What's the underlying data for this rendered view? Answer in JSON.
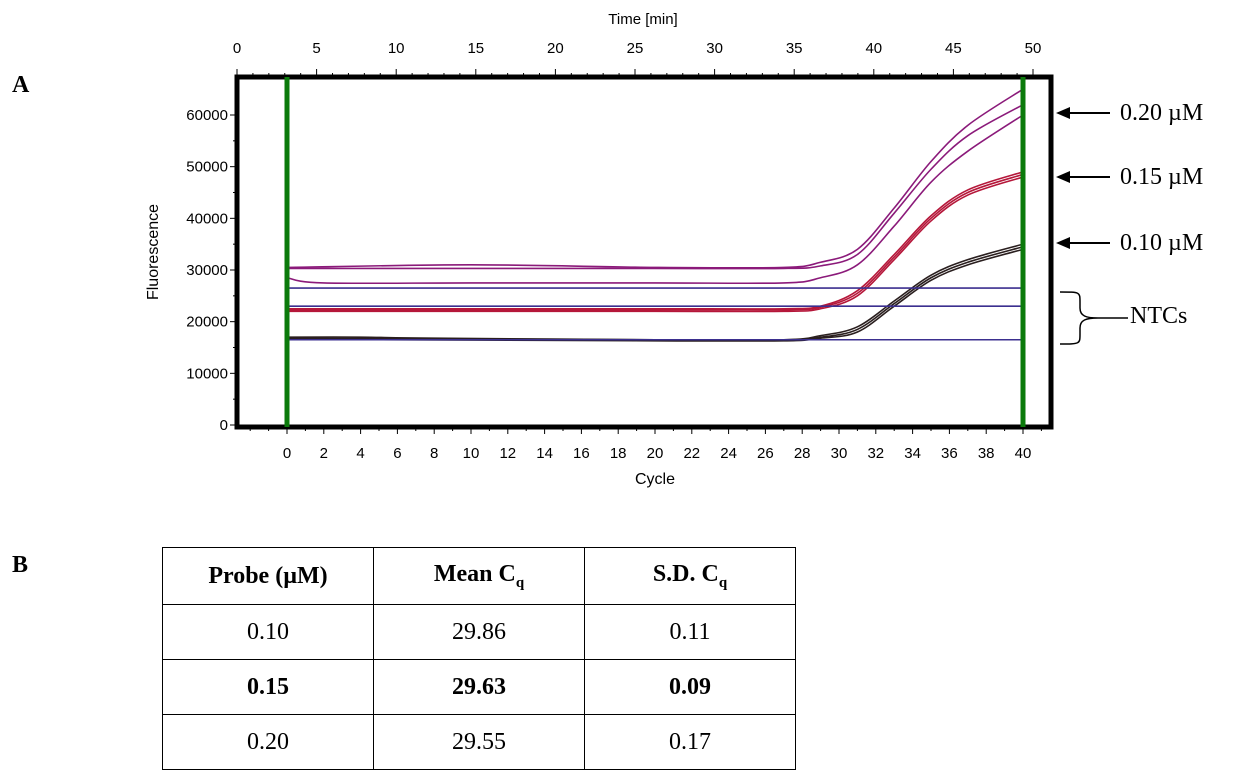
{
  "panel_labels": {
    "a": "A",
    "b": "B"
  },
  "annotations": {
    "c020": "0.20 µM",
    "c015": "0.15 µM",
    "c010": "0.10 µM",
    "ntc": "NTCs"
  },
  "colors": {
    "marker": "#0b7a0b",
    "high": "#8b1a7a",
    "mid": "#b5173a",
    "low": "#2a1f1f",
    "ntc": "#3b2f8f"
  },
  "chart_data": {
    "type": "line",
    "xlabel": "Cycle",
    "ylabel": "Fluorescence",
    "top_axis_label": "Time [min]",
    "xlim": [
      0,
      40
    ],
    "ylim": [
      0,
      65000
    ],
    "x_ticks": [
      "0",
      "2",
      "4",
      "6",
      "8",
      "10",
      "12",
      "14",
      "16",
      "18",
      "20",
      "22",
      "24",
      "26",
      "28",
      "30",
      "32",
      "34",
      "36",
      "38",
      "40"
    ],
    "y_ticks": [
      "0",
      "10000",
      "20000",
      "30000",
      "40000",
      "50000",
      "60000"
    ],
    "top_ticks": [
      "0",
      "5",
      "10",
      "15",
      "20",
      "25",
      "30",
      "35",
      "40",
      "45",
      "50"
    ],
    "grid": false,
    "markers": [
      0,
      40
    ],
    "series": [
      {
        "color_key": "high",
        "x": [
          0,
          10,
          20,
          27,
          29,
          31,
          33,
          35,
          37,
          40
        ],
        "y": [
          30500,
          31000,
          30500,
          30500,
          31500,
          34000,
          42000,
          51000,
          58000,
          65000
        ]
      },
      {
        "color_key": "high",
        "x": [
          0,
          10,
          20,
          27,
          29,
          31,
          33,
          35,
          37,
          40
        ],
        "y": [
          30300,
          30300,
          30300,
          30300,
          30800,
          33000,
          41000,
          49500,
          56000,
          62000
        ]
      },
      {
        "color_key": "high",
        "x": [
          0,
          2,
          10,
          20,
          27,
          29,
          31,
          33,
          35,
          37,
          40
        ],
        "y": [
          28500,
          27500,
          27500,
          27500,
          27500,
          28500,
          31000,
          38500,
          47000,
          53000,
          60000
        ]
      },
      {
        "color_key": "mid",
        "x": [
          0,
          10,
          20,
          27,
          29,
          31,
          33,
          35,
          37,
          40
        ],
        "y": [
          22500,
          22500,
          22500,
          22500,
          23000,
          26000,
          33000,
          40500,
          45500,
          49000
        ]
      },
      {
        "color_key": "mid",
        "x": [
          0,
          10,
          20,
          27,
          29,
          31,
          33,
          35,
          37,
          40
        ],
        "y": [
          22300,
          22300,
          22300,
          22300,
          22800,
          25500,
          32500,
          40000,
          45000,
          48500
        ]
      },
      {
        "color_key": "mid",
        "x": [
          0,
          10,
          20,
          27,
          29,
          31,
          33,
          35,
          37,
          40
        ],
        "y": [
          22000,
          22000,
          22000,
          22000,
          22500,
          25000,
          32000,
          39500,
          44500,
          48000
        ]
      },
      {
        "color_key": "low",
        "x": [
          0,
          4,
          8,
          20,
          27,
          29,
          31,
          33,
          35,
          37,
          40
        ],
        "y": [
          17000,
          17000,
          16800,
          16500,
          16500,
          17300,
          19000,
          24000,
          29000,
          32000,
          35000
        ]
      },
      {
        "color_key": "low",
        "x": [
          0,
          20,
          27,
          29,
          31,
          33,
          35,
          37,
          40
        ],
        "y": [
          16800,
          16500,
          16500,
          17000,
          18500,
          23500,
          28500,
          31500,
          34500
        ]
      },
      {
        "color_key": "low",
        "x": [
          0,
          20,
          27,
          29,
          31,
          33,
          35,
          37,
          40
        ],
        "y": [
          16600,
          16300,
          16300,
          16800,
          18000,
          23000,
          28000,
          31000,
          34000
        ]
      },
      {
        "color_key": "ntc",
        "x": [
          0,
          40
        ],
        "y": [
          26500,
          26500
        ]
      },
      {
        "color_key": "ntc",
        "x": [
          0,
          40
        ],
        "y": [
          23000,
          23000
        ]
      },
      {
        "color_key": "ntc",
        "x": [
          0,
          40
        ],
        "y": [
          16500,
          16500
        ]
      }
    ]
  },
  "table": {
    "headers": [
      {
        "text": "Probe (µM)",
        "sub": ""
      },
      {
        "text": "Mean C",
        "sub": "q"
      },
      {
        "text": "S.D. C",
        "sub": "q"
      }
    ],
    "rows": [
      [
        "0.10",
        "29.86",
        "0.11"
      ],
      [
        "0.15",
        "29.63",
        "0.09"
      ],
      [
        "0.20",
        "29.55",
        "0.17"
      ]
    ]
  }
}
